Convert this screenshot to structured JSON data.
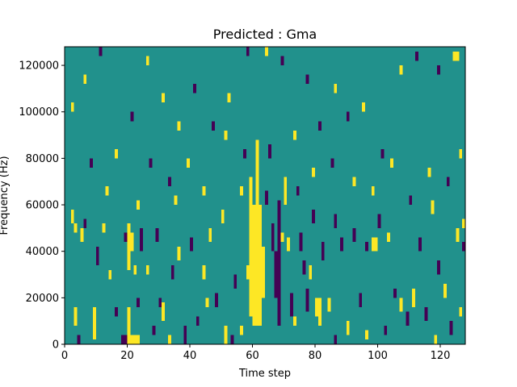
{
  "chart_data": {
    "type": "heatmap",
    "title": "Predicted : Gma",
    "xlabel": "Time step",
    "ylabel": "Frequency (Hz)",
    "xlim": [
      0,
      128
    ],
    "ylim": [
      0,
      128000
    ],
    "x_ticks": [
      {
        "value": 0,
        "label": "0"
      },
      {
        "value": 20,
        "label": "20"
      },
      {
        "value": 40,
        "label": "40"
      },
      {
        "value": 60,
        "label": "60"
      },
      {
        "value": 80,
        "label": "80"
      },
      {
        "value": 100,
        "label": "100"
      },
      {
        "value": 120,
        "label": "120"
      }
    ],
    "y_ticks": [
      {
        "value": 0,
        "label": "0"
      },
      {
        "value": 20000,
        "label": "20000"
      },
      {
        "value": 40000,
        "label": "40000"
      },
      {
        "value": 60000,
        "label": "60000"
      },
      {
        "value": 80000,
        "label": "80000"
      },
      {
        "value": 100000,
        "label": "100000"
      },
      {
        "value": 120000,
        "label": "120000"
      }
    ],
    "grid": false,
    "colormap": "viridis",
    "colors": {
      "background_class": "#21918c",
      "low_class": "#440154",
      "high_class": "#fde725"
    },
    "cells": [
      {
        "x0": 60,
        "x1": 63,
        "y0": 8000,
        "y1": 60000,
        "level": "high"
      },
      {
        "x0": 61,
        "x1": 62,
        "y0": 60000,
        "y1": 88000,
        "level": "high"
      },
      {
        "x0": 59,
        "x1": 60,
        "y0": 12000,
        "y1": 72000,
        "level": "high"
      },
      {
        "x0": 63,
        "x1": 64,
        "y0": 20000,
        "y1": 42000,
        "level": "high"
      },
      {
        "x0": 18,
        "x1": 19,
        "y0": 0,
        "y1": 4000,
        "level": "low"
      },
      {
        "x0": 19,
        "x1": 20,
        "y0": 0,
        "y1": 4000,
        "level": "low"
      },
      {
        "x0": 20,
        "x1": 21,
        "y0": 0,
        "y1": 4000,
        "level": "high"
      },
      {
        "x0": 21,
        "x1": 22,
        "y0": 0,
        "y1": 4000,
        "level": "high"
      },
      {
        "x0": 22,
        "x1": 23,
        "y0": 0,
        "y1": 4000,
        "level": "high"
      },
      {
        "x0": 23,
        "x1": 24,
        "y0": 0,
        "y1": 4000,
        "level": "high"
      },
      {
        "x0": 20,
        "x1": 21,
        "y0": 4000,
        "y1": 16000,
        "level": "high"
      },
      {
        "x0": 20,
        "x1": 21,
        "y0": 32000,
        "y1": 52000,
        "level": "high"
      },
      {
        "x0": 21,
        "x1": 22,
        "y0": 40000,
        "y1": 48000,
        "level": "high"
      },
      {
        "x0": 22,
        "x1": 23,
        "y0": 30000,
        "y1": 34000,
        "level": "high"
      },
      {
        "x0": 23,
        "x1": 24,
        "y0": 58000,
        "y1": 62000,
        "level": "high"
      },
      {
        "x0": 19,
        "x1": 20,
        "y0": 44000,
        "y1": 48000,
        "level": "low"
      },
      {
        "x0": 23,
        "x1": 24,
        "y0": 16000,
        "y1": 20000,
        "level": "low"
      },
      {
        "x0": 24,
        "x1": 25,
        "y0": 40000,
        "y1": 50000,
        "level": "low"
      },
      {
        "x0": 26,
        "x1": 27,
        "y0": 30000,
        "y1": 34000,
        "level": "high"
      },
      {
        "x0": 2,
        "x1": 3,
        "y0": 52000,
        "y1": 58000,
        "level": "high"
      },
      {
        "x0": 3,
        "x1": 4,
        "y0": 48000,
        "y1": 52000,
        "level": "high"
      },
      {
        "x0": 3,
        "x1": 4,
        "y0": 8000,
        "y1": 16000,
        "level": "high"
      },
      {
        "x0": 4,
        "x1": 5,
        "y0": 0,
        "y1": 4000,
        "level": "low"
      },
      {
        "x0": 5,
        "x1": 6,
        "y0": 44000,
        "y1": 50000,
        "level": "high"
      },
      {
        "x0": 6,
        "x1": 7,
        "y0": 50000,
        "y1": 54000,
        "level": "low"
      },
      {
        "x0": 12,
        "x1": 13,
        "y0": 48000,
        "y1": 52000,
        "level": "high"
      },
      {
        "x0": 9,
        "x1": 10,
        "y0": 2000,
        "y1": 16000,
        "level": "high"
      },
      {
        "x0": 10,
        "x1": 11,
        "y0": 34000,
        "y1": 42000,
        "level": "low"
      },
      {
        "x0": 29,
        "x1": 30,
        "y0": 44000,
        "y1": 50000,
        "level": "low"
      },
      {
        "x0": 30,
        "x1": 31,
        "y0": 16000,
        "y1": 20000,
        "level": "low"
      },
      {
        "x0": 31,
        "x1": 32,
        "y0": 10000,
        "y1": 18000,
        "level": "high"
      },
      {
        "x0": 34,
        "x1": 35,
        "y0": 28000,
        "y1": 34000,
        "level": "low"
      },
      {
        "x0": 35,
        "x1": 36,
        "y0": 60000,
        "y1": 64000,
        "level": "high"
      },
      {
        "x0": 36,
        "x1": 37,
        "y0": 36000,
        "y1": 42000,
        "level": "high"
      },
      {
        "x0": 38,
        "x1": 39,
        "y0": 0,
        "y1": 8000,
        "level": "low"
      },
      {
        "x0": 40,
        "x1": 41,
        "y0": 40000,
        "y1": 46000,
        "level": "low"
      },
      {
        "x0": 42,
        "x1": 43,
        "y0": 8000,
        "y1": 12000,
        "level": "low"
      },
      {
        "x0": 44,
        "x1": 45,
        "y0": 28000,
        "y1": 34000,
        "level": "high"
      },
      {
        "x0": 46,
        "x1": 47,
        "y0": 44000,
        "y1": 50000,
        "level": "high"
      },
      {
        "x0": 48,
        "x1": 49,
        "y0": 16000,
        "y1": 22000,
        "level": "low"
      },
      {
        "x0": 50,
        "x1": 51,
        "y0": 52000,
        "y1": 58000,
        "level": "high"
      },
      {
        "x0": 51,
        "x1": 52,
        "y0": 0,
        "y1": 8000,
        "level": "high"
      },
      {
        "x0": 53,
        "x1": 54,
        "y0": 0,
        "y1": 4000,
        "level": "low"
      },
      {
        "x0": 54,
        "x1": 55,
        "y0": 24000,
        "y1": 30000,
        "level": "low"
      },
      {
        "x0": 56,
        "x1": 57,
        "y0": 64000,
        "y1": 68000,
        "level": "high"
      },
      {
        "x0": 58,
        "x1": 59,
        "y0": 28000,
        "y1": 34000,
        "level": "high"
      },
      {
        "x0": 64,
        "x1": 65,
        "y0": 60000,
        "y1": 66000,
        "level": "low"
      },
      {
        "x0": 65,
        "x1": 66,
        "y0": 80000,
        "y1": 86000,
        "level": "low"
      },
      {
        "x0": 66,
        "x1": 67,
        "y0": 40000,
        "y1": 52000,
        "level": "low"
      },
      {
        "x0": 67,
        "x1": 68,
        "y0": 20000,
        "y1": 40000,
        "level": "low"
      },
      {
        "x0": 68,
        "x1": 69,
        "y0": 8000,
        "y1": 62000,
        "level": "low"
      },
      {
        "x0": 69,
        "x1": 70,
        "y0": 44000,
        "y1": 48000,
        "level": "high"
      },
      {
        "x0": 70,
        "x1": 71,
        "y0": 60000,
        "y1": 72000,
        "level": "high"
      },
      {
        "x0": 71,
        "x1": 72,
        "y0": 40000,
        "y1": 46000,
        "level": "high"
      },
      {
        "x0": 72,
        "x1": 73,
        "y0": 12000,
        "y1": 22000,
        "level": "low"
      },
      {
        "x0": 73,
        "x1": 74,
        "y0": 8000,
        "y1": 12000,
        "level": "high"
      },
      {
        "x0": 75,
        "x1": 76,
        "y0": 40000,
        "y1": 48000,
        "level": "low"
      },
      {
        "x0": 76,
        "x1": 77,
        "y0": 30000,
        "y1": 36000,
        "level": "low"
      },
      {
        "x0": 77,
        "x1": 78,
        "y0": 14000,
        "y1": 24000,
        "level": "low"
      },
      {
        "x0": 78,
        "x1": 79,
        "y0": 28000,
        "y1": 34000,
        "level": "high"
      },
      {
        "x0": 79,
        "x1": 80,
        "y0": 52000,
        "y1": 58000,
        "level": "low"
      },
      {
        "x0": 80,
        "x1": 81,
        "y0": 12000,
        "y1": 20000,
        "level": "high"
      },
      {
        "x0": 81,
        "x1": 82,
        "y0": 8000,
        "y1": 20000,
        "level": "high"
      },
      {
        "x0": 82,
        "x1": 83,
        "y0": 36000,
        "y1": 44000,
        "level": "low"
      },
      {
        "x0": 84,
        "x1": 85,
        "y0": 14000,
        "y1": 20000,
        "level": "high"
      },
      {
        "x0": 86,
        "x1": 87,
        "y0": 50000,
        "y1": 56000,
        "level": "low"
      },
      {
        "x0": 88,
        "x1": 89,
        "y0": 40000,
        "y1": 46000,
        "level": "low"
      },
      {
        "x0": 90,
        "x1": 91,
        "y0": 4000,
        "y1": 10000,
        "level": "high"
      },
      {
        "x0": 92,
        "x1": 93,
        "y0": 44000,
        "y1": 50000,
        "level": "low"
      },
      {
        "x0": 94,
        "x1": 95,
        "y0": 16000,
        "y1": 22000,
        "level": "low"
      },
      {
        "x0": 96,
        "x1": 97,
        "y0": 40000,
        "y1": 44000,
        "level": "low"
      },
      {
        "x0": 98,
        "x1": 99,
        "y0": 40000,
        "y1": 46000,
        "level": "high"
      },
      {
        "x0": 99,
        "x1": 100,
        "y0": 40000,
        "y1": 46000,
        "level": "high"
      },
      {
        "x0": 100,
        "x1": 101,
        "y0": 50000,
        "y1": 56000,
        "level": "low"
      },
      {
        "x0": 103,
        "x1": 104,
        "y0": 44000,
        "y1": 48000,
        "level": "high"
      },
      {
        "x0": 105,
        "x1": 106,
        "y0": 20000,
        "y1": 24000,
        "level": "low"
      },
      {
        "x0": 107,
        "x1": 108,
        "y0": 14000,
        "y1": 20000,
        "level": "high"
      },
      {
        "x0": 109,
        "x1": 110,
        "y0": 8000,
        "y1": 14000,
        "level": "low"
      },
      {
        "x0": 111,
        "x1": 112,
        "y0": 16000,
        "y1": 24000,
        "level": "high"
      },
      {
        "x0": 113,
        "x1": 114,
        "y0": 40000,
        "y1": 46000,
        "level": "low"
      },
      {
        "x0": 115,
        "x1": 116,
        "y0": 10000,
        "y1": 16000,
        "level": "low"
      },
      {
        "x0": 117,
        "x1": 118,
        "y0": 56000,
        "y1": 62000,
        "level": "high"
      },
      {
        "x0": 119,
        "x1": 120,
        "y0": 30000,
        "y1": 36000,
        "level": "low"
      },
      {
        "x0": 121,
        "x1": 122,
        "y0": 20000,
        "y1": 26000,
        "level": "high"
      },
      {
        "x0": 123,
        "x1": 124,
        "y0": 4000,
        "y1": 10000,
        "level": "low"
      },
      {
        "x0": 125,
        "x1": 126,
        "y0": 44000,
        "y1": 50000,
        "level": "high"
      },
      {
        "x0": 127,
        "x1": 128,
        "y0": 50000,
        "y1": 54000,
        "level": "high"
      },
      {
        "x0": 127,
        "x1": 128,
        "y0": 40000,
        "y1": 44000,
        "level": "low"
      },
      {
        "x0": 124,
        "x1": 125,
        "y0": 122000,
        "y1": 126000,
        "level": "high"
      },
      {
        "x0": 125,
        "x1": 126,
        "y0": 122000,
        "y1": 126000,
        "level": "high"
      },
      {
        "x0": 119,
        "x1": 120,
        "y0": 116000,
        "y1": 120000,
        "level": "low"
      },
      {
        "x0": 112,
        "x1": 113,
        "y0": 122000,
        "y1": 126000,
        "level": "low"
      },
      {
        "x0": 107,
        "x1": 108,
        "y0": 116000,
        "y1": 120000,
        "level": "high"
      },
      {
        "x0": 101,
        "x1": 102,
        "y0": 80000,
        "y1": 84000,
        "level": "low"
      },
      {
        "x0": 95,
        "x1": 96,
        "y0": 100000,
        "y1": 104000,
        "level": "high"
      },
      {
        "x0": 90,
        "x1": 91,
        "y0": 96000,
        "y1": 100000,
        "level": "low"
      },
      {
        "x0": 86,
        "x1": 87,
        "y0": 108000,
        "y1": 112000,
        "level": "high"
      },
      {
        "x0": 81,
        "x1": 82,
        "y0": 92000,
        "y1": 96000,
        "level": "low"
      },
      {
        "x0": 77,
        "x1": 78,
        "y0": 112000,
        "y1": 116000,
        "level": "low"
      },
      {
        "x0": 73,
        "x1": 74,
        "y0": 88000,
        "y1": 92000,
        "level": "high"
      },
      {
        "x0": 69,
        "x1": 70,
        "y0": 120000,
        "y1": 124000,
        "level": "low"
      },
      {
        "x0": 64,
        "x1": 65,
        "y0": 124000,
        "y1": 128000,
        "level": "high"
      },
      {
        "x0": 58,
        "x1": 59,
        "y0": 124000,
        "y1": 128000,
        "level": "low"
      },
      {
        "x0": 52,
        "x1": 53,
        "y0": 104000,
        "y1": 108000,
        "level": "high"
      },
      {
        "x0": 47,
        "x1": 48,
        "y0": 92000,
        "y1": 96000,
        "level": "low"
      },
      {
        "x0": 41,
        "x1": 42,
        "y0": 108000,
        "y1": 112000,
        "level": "low"
      },
      {
        "x0": 36,
        "x1": 37,
        "y0": 92000,
        "y1": 96000,
        "level": "high"
      },
      {
        "x0": 31,
        "x1": 32,
        "y0": 104000,
        "y1": 108000,
        "level": "high"
      },
      {
        "x0": 26,
        "x1": 27,
        "y0": 120000,
        "y1": 124000,
        "level": "high"
      },
      {
        "x0": 21,
        "x1": 22,
        "y0": 96000,
        "y1": 100000,
        "level": "low"
      },
      {
        "x0": 16,
        "x1": 17,
        "y0": 80000,
        "y1": 84000,
        "level": "high"
      },
      {
        "x0": 11,
        "x1": 12,
        "y0": 124000,
        "y1": 128000,
        "level": "low"
      },
      {
        "x0": 6,
        "x1": 7,
        "y0": 112000,
        "y1": 116000,
        "level": "high"
      },
      {
        "x0": 2,
        "x1": 3,
        "y0": 100000,
        "y1": 104000,
        "level": "high"
      },
      {
        "x0": 27,
        "x1": 28,
        "y0": 76000,
        "y1": 80000,
        "level": "low"
      },
      {
        "x0": 33,
        "x1": 34,
        "y0": 68000,
        "y1": 72000,
        "level": "low"
      },
      {
        "x0": 39,
        "x1": 40,
        "y0": 76000,
        "y1": 80000,
        "level": "high"
      },
      {
        "x0": 44,
        "x1": 45,
        "y0": 64000,
        "y1": 68000,
        "level": "high"
      },
      {
        "x0": 51,
        "x1": 52,
        "y0": 88000,
        "y1": 92000,
        "level": "high"
      },
      {
        "x0": 57,
        "x1": 58,
        "y0": 80000,
        "y1": 84000,
        "level": "low"
      },
      {
        "x0": 74,
        "x1": 75,
        "y0": 64000,
        "y1": 68000,
        "level": "low"
      },
      {
        "x0": 79,
        "x1": 80,
        "y0": 72000,
        "y1": 76000,
        "level": "high"
      },
      {
        "x0": 85,
        "x1": 86,
        "y0": 76000,
        "y1": 80000,
        "level": "low"
      },
      {
        "x0": 92,
        "x1": 93,
        "y0": 68000,
        "y1": 72000,
        "level": "high"
      },
      {
        "x0": 98,
        "x1": 99,
        "y0": 64000,
        "y1": 68000,
        "level": "high"
      },
      {
        "x0": 104,
        "x1": 105,
        "y0": 76000,
        "y1": 80000,
        "level": "high"
      },
      {
        "x0": 110,
        "x1": 111,
        "y0": 60000,
        "y1": 64000,
        "level": "low"
      },
      {
        "x0": 116,
        "x1": 117,
        "y0": 72000,
        "y1": 76000,
        "level": "high"
      },
      {
        "x0": 122,
        "x1": 123,
        "y0": 68000,
        "y1": 72000,
        "level": "low"
      },
      {
        "x0": 126,
        "x1": 127,
        "y0": 80000,
        "y1": 84000,
        "level": "high"
      },
      {
        "x0": 13,
        "x1": 14,
        "y0": 64000,
        "y1": 68000,
        "level": "high"
      },
      {
        "x0": 8,
        "x1": 9,
        "y0": 76000,
        "y1": 80000,
        "level": "low"
      },
      {
        "x0": 14,
        "x1": 15,
        "y0": 28000,
        "y1": 32000,
        "level": "high"
      },
      {
        "x0": 16,
        "x1": 17,
        "y0": 12000,
        "y1": 16000,
        "level": "low"
      },
      {
        "x0": 28,
        "x1": 29,
        "y0": 4000,
        "y1": 8000,
        "level": "low"
      },
      {
        "x0": 33,
        "x1": 34,
        "y0": 0,
        "y1": 4000,
        "level": "high"
      },
      {
        "x0": 45,
        "x1": 46,
        "y0": 16000,
        "y1": 20000,
        "level": "high"
      },
      {
        "x0": 56,
        "x1": 57,
        "y0": 4000,
        "y1": 8000,
        "level": "high"
      },
      {
        "x0": 86,
        "x1": 87,
        "y0": 0,
        "y1": 4000,
        "level": "low"
      },
      {
        "x0": 96,
        "x1": 97,
        "y0": 2000,
        "y1": 6000,
        "level": "high"
      },
      {
        "x0": 102,
        "x1": 103,
        "y0": 4000,
        "y1": 8000,
        "level": "low"
      },
      {
        "x0": 118,
        "x1": 119,
        "y0": 0,
        "y1": 4000,
        "level": "high"
      },
      {
        "x0": 126,
        "x1": 127,
        "y0": 12000,
        "y1": 16000,
        "level": "high"
      }
    ]
  }
}
